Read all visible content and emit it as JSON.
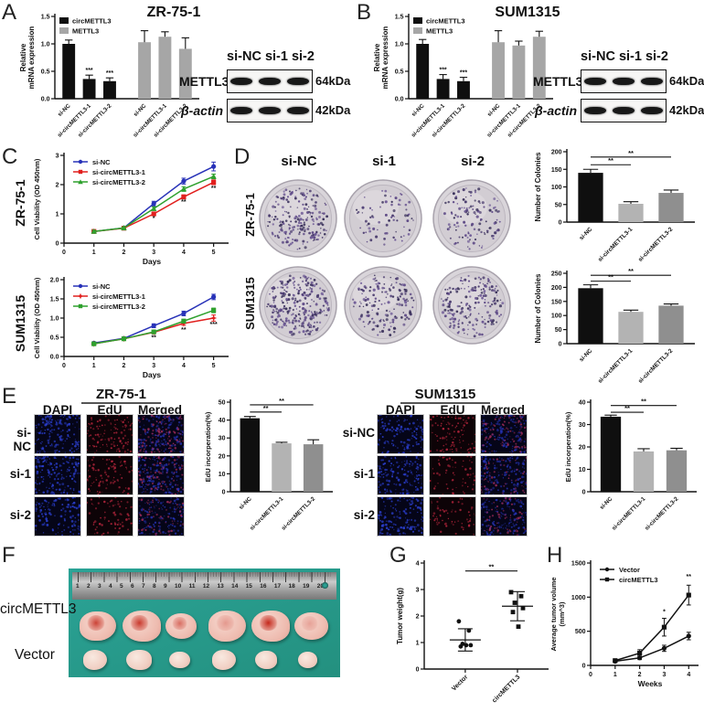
{
  "panels": {
    "A": {
      "label": "A",
      "title": "ZR-75-1",
      "blot": {
        "lanes": "si-NC si-1 si-2",
        "rows": [
          {
            "protein": "METTL3",
            "size": "64kDa"
          },
          {
            "protein": "β-actin",
            "size": "42kDa"
          }
        ]
      }
    },
    "B": {
      "label": "B",
      "title": "SUM1315",
      "blot": {
        "lanes": "si-NC si-1 si-2",
        "rows": [
          {
            "protein": "METTL3",
            "size": "64kDa"
          },
          {
            "protein": "β-actin",
            "size": "42kDa"
          }
        ]
      }
    },
    "C": {
      "label": "C",
      "row_labels": [
        "ZR-75-1",
        "SUM1315"
      ]
    },
    "D": {
      "label": "D",
      "col_headers": [
        "si-NC",
        "si-1",
        "si-2"
      ],
      "row_labels": [
        "ZR-75-1",
        "SUM1315"
      ]
    },
    "E": {
      "label": "E",
      "left": {
        "title": "ZR-75-1",
        "col_headers": [
          "DAPI",
          "EdU",
          "Merged"
        ],
        "row_labels": [
          "si-NC",
          "si-1",
          "si-2"
        ]
      },
      "right": {
        "title": "SUM1315",
        "col_headers": [
          "DAPI",
          "EdU",
          "Merged"
        ],
        "row_labels": [
          "si-NC",
          "si-1",
          "si-2"
        ]
      }
    },
    "F": {
      "label": "F",
      "row_labels": [
        "circMETTL3",
        "Vector"
      ],
      "ruler_numbers": [
        1,
        2,
        3,
        4,
        5,
        6,
        7,
        8,
        9,
        10,
        11,
        12,
        13,
        14,
        15,
        16,
        17,
        18,
        19,
        20
      ]
    },
    "G": {
      "label": "G"
    },
    "H": {
      "label": "H"
    }
  },
  "chart_data": [
    {
      "id": "A_mrna",
      "type": "bar",
      "title": "ZR-75-1",
      "ylabel": [
        "Relative",
        "mRNA expression"
      ],
      "ylim": [
        0,
        1.5
      ],
      "yticks": [
        0,
        0.5,
        1,
        1.5
      ],
      "ytick_labels": [
        "0.0",
        "0.5",
        "1.0",
        "1.5"
      ],
      "categories": [
        "si-NC",
        "si-circMETTL3-1",
        "si-circMETTL3-2",
        "si-NC",
        "si-circMETTL3-1",
        "si-circMETTL3-2"
      ],
      "values": [
        1.0,
        0.36,
        0.32,
        1.03,
        1.13,
        0.91
      ],
      "errors": [
        0.07,
        0.07,
        0.06,
        0.21,
        0.09,
        0.2
      ],
      "bar_colors": [
        "#0f0f0f",
        "#0f0f0f",
        "#0f0f0f",
        "#a6a6a6",
        "#a6a6a6",
        "#a6a6a6"
      ],
      "sig_labels": [
        "",
        "***",
        "***",
        "",
        "",
        ""
      ],
      "gap_after": 2,
      "legend": [
        {
          "label": "circMETTL3",
          "color": "#0f0f0f"
        },
        {
          "label": "METTL3",
          "color": "#a6a6a6"
        }
      ]
    },
    {
      "id": "B_mrna",
      "type": "bar",
      "title": "SUM1315",
      "ylabel": [
        "Relative",
        "mRNA expression"
      ],
      "ylim": [
        0,
        1.5
      ],
      "yticks": [
        0,
        0.5,
        1,
        1.5
      ],
      "ytick_labels": [
        "0.0",
        "0.5",
        "1.0",
        "1.5"
      ],
      "categories": [
        "si-NC",
        "si-circMETTL3-1",
        "si-circMETTL3-2",
        "si-NC",
        "si-circMETTL3-1",
        "si-circMETTL3-2"
      ],
      "values": [
        1.0,
        0.36,
        0.32,
        1.03,
        0.97,
        1.13
      ],
      "errors": [
        0.08,
        0.08,
        0.07,
        0.21,
        0.08,
        0.1
      ],
      "bar_colors": [
        "#0f0f0f",
        "#0f0f0f",
        "#0f0f0f",
        "#a6a6a6",
        "#a6a6a6",
        "#a6a6a6"
      ],
      "sig_labels": [
        "",
        "***",
        "***",
        "",
        "",
        ""
      ],
      "gap_after": 2,
      "legend": [
        {
          "label": "circMETTL3",
          "color": "#0f0f0f"
        },
        {
          "label": "METTL3",
          "color": "#a6a6a6"
        }
      ]
    },
    {
      "id": "C_zr",
      "type": "line",
      "cell_line": "ZR-75-1",
      "ylabel": "Cell Viability (OD 450nm)",
      "xlabel": "Days",
      "ylim": [
        0,
        3
      ],
      "yticks": [
        0,
        1,
        2,
        3
      ],
      "ytick_labels": [
        "0",
        "1",
        "2",
        "3"
      ],
      "xlim": [
        0,
        5.5
      ],
      "xticks": [
        0,
        1,
        2,
        3,
        4,
        5
      ],
      "x": [
        1,
        2,
        3,
        4,
        5
      ],
      "series": [
        {
          "name": "si-NC",
          "color": "#2832b8",
          "marker": "circle",
          "values": [
            0.4,
            0.52,
            1.35,
            2.12,
            2.62
          ],
          "errors": [
            0.04,
            0.04,
            0.08,
            0.1,
            0.15
          ]
        },
        {
          "name": "si-circMETTL3-1",
          "color": "#e1201e",
          "marker": "square",
          "values": [
            0.4,
            0.51,
            1.0,
            1.58,
            2.08
          ],
          "errors": [
            0.04,
            0.04,
            0.06,
            0.07,
            0.08
          ]
        },
        {
          "name": "si-circMETTL3-2",
          "color": "#2fa12e",
          "marker": "triangle",
          "values": [
            0.4,
            0.52,
            1.18,
            1.85,
            2.28
          ],
          "errors": [
            0.04,
            0.04,
            0.06,
            0.08,
            0.08
          ]
        }
      ],
      "annotations": [
        {
          "x": 3,
          "y": 0.78,
          "text": "*"
        },
        {
          "x": 4,
          "y": 1.34,
          "text": "**"
        },
        {
          "x": 5,
          "y": 1.82,
          "text": "**"
        }
      ]
    },
    {
      "id": "C_sum",
      "type": "line",
      "cell_line": "SUM1315",
      "ylabel": "Cell Viability (OD 450nm)",
      "xlabel": "Days",
      "ylim": [
        0,
        2
      ],
      "yticks": [
        0,
        0.5,
        1,
        1.5,
        2
      ],
      "ytick_labels": [
        "0.0",
        "0.5",
        "1.0",
        "1.5",
        "2.0"
      ],
      "xlim": [
        0,
        5.5
      ],
      "xticks": [
        0,
        1,
        2,
        3,
        4,
        5
      ],
      "x": [
        1,
        2,
        3,
        4,
        5
      ],
      "series": [
        {
          "name": "si-NC",
          "color": "#2832b8",
          "marker": "circle",
          "values": [
            0.35,
            0.47,
            0.8,
            1.12,
            1.55
          ],
          "errors": [
            0.03,
            0.03,
            0.05,
            0.06,
            0.07
          ]
        },
        {
          "name": "si-circMETTL3-1",
          "color": "#e1201e",
          "marker": "star",
          "values": [
            0.33,
            0.46,
            0.63,
            0.86,
            1.0
          ],
          "errors": [
            0.03,
            0.03,
            0.04,
            0.05,
            0.08
          ]
        },
        {
          "name": "si-circMETTL3-2",
          "color": "#2fa12e",
          "marker": "square",
          "values": [
            0.33,
            0.46,
            0.64,
            0.92,
            1.2
          ],
          "errors": [
            0.03,
            0.03,
            0.04,
            0.05,
            0.06
          ]
        }
      ],
      "annotations": [
        {
          "x": 3,
          "y": 0.44,
          "text": "**"
        },
        {
          "x": 4,
          "y": 0.64,
          "text": "**"
        },
        {
          "x": 5,
          "y": 0.78,
          "text": "***"
        }
      ]
    },
    {
      "id": "D_zr_col",
      "type": "bar",
      "cell_line": "ZR-75-1",
      "ylabel": "Number of Colonies",
      "ylim": [
        0,
        200
      ],
      "yticks": [
        0,
        50,
        100,
        150,
        200
      ],
      "ytick_labels": [
        "0",
        "50",
        "100",
        "150",
        "200"
      ],
      "categories": [
        "si-NC",
        "si-circMETTL3-1",
        "si-circMETTL3-2"
      ],
      "values": [
        140,
        52,
        83
      ],
      "errors": [
        10,
        6,
        8
      ],
      "bar_colors": [
        "#0f0f0f",
        "#b3b3b3",
        "#8f8f8f"
      ],
      "comparisons": [
        {
          "a": 0,
          "b": 1,
          "label": "**",
          "y": 163
        },
        {
          "a": 0,
          "b": 2,
          "label": "**",
          "y": 185
        }
      ]
    },
    {
      "id": "D_sum_col",
      "type": "bar",
      "cell_line": "SUM1315",
      "ylabel": "Number of Colonies",
      "ylim": [
        0,
        250
      ],
      "yticks": [
        0,
        50,
        100,
        150,
        200,
        250
      ],
      "ytick_labels": [
        "0",
        "50",
        "100",
        "150",
        "200",
        "250"
      ],
      "categories": [
        "si-NC",
        "si-circMETTL3-1",
        "si-circMETTL3-2"
      ],
      "values": [
        197,
        113,
        135
      ],
      "errors": [
        12,
        6,
        6
      ],
      "bar_colors": [
        "#0f0f0f",
        "#b3b3b3",
        "#8f8f8f"
      ],
      "comparisons": [
        {
          "a": 0,
          "b": 1,
          "label": "**",
          "y": 222
        },
        {
          "a": 0,
          "b": 2,
          "label": "**",
          "y": 243
        }
      ]
    },
    {
      "id": "E_zr_edu",
      "type": "bar",
      "cell_line": "ZR-75-1",
      "ylabel": "EdU incorperation(%)",
      "ylim": [
        0,
        50
      ],
      "yticks": [
        0,
        10,
        20,
        30,
        40,
        50
      ],
      "ytick_labels": [
        "0",
        "10",
        "20",
        "30",
        "40",
        "50"
      ],
      "categories": [
        "si-NC",
        "si-circMETTL3-1",
        "si-circMETTL3-2"
      ],
      "values": [
        41,
        27,
        26.5
      ],
      "errors": [
        1,
        0.6,
        2.5
      ],
      "bar_colors": [
        "#0f0f0f",
        "#b3b3b3",
        "#8f8f8f"
      ],
      "comparisons": [
        {
          "a": 0,
          "b": 1,
          "label": "**",
          "y": 44.5
        },
        {
          "a": 0,
          "b": 2,
          "label": "**",
          "y": 48.5
        }
      ]
    },
    {
      "id": "E_sum_edu",
      "type": "bar",
      "cell_line": "SUM1315",
      "ylabel": "EdU incorperation(%)",
      "ylim": [
        0,
        40
      ],
      "yticks": [
        0,
        10,
        20,
        30,
        40
      ],
      "ytick_labels": [
        "0",
        "10",
        "20",
        "30",
        "40"
      ],
      "categories": [
        "si-NC",
        "si-circMETTL3-1",
        "si-circMETTL3-2"
      ],
      "values": [
        33.5,
        18,
        18.5
      ],
      "errors": [
        0.7,
        1.2,
        0.9
      ],
      "bar_colors": [
        "#0f0f0f",
        "#b3b3b3",
        "#8f8f8f"
      ],
      "comparisons": [
        {
          "a": 0,
          "b": 1,
          "label": "**",
          "y": 35.5
        },
        {
          "a": 0,
          "b": 2,
          "label": "**",
          "y": 38.5
        }
      ]
    },
    {
      "id": "G_weight",
      "type": "scatter",
      "ylabel": "Tumor weight(g)",
      "ylim": [
        0,
        4
      ],
      "yticks": [
        0,
        1,
        2,
        3,
        4
      ],
      "ytick_labels": [
        "0",
        "1",
        "2",
        "3",
        "4"
      ],
      "groups": [
        {
          "name": "Vector",
          "marker": "circle",
          "points": [
            1.8,
            1.45,
            0.95,
            0.9,
            0.85,
            0.9
          ],
          "mean": 1.1,
          "err": 0.42
        },
        {
          "name": "circMETTL3",
          "marker": "square",
          "points": [
            2.9,
            2.75,
            2.5,
            2.3,
            2.15,
            1.6
          ],
          "mean": 2.37,
          "err": 0.55
        }
      ],
      "comparisons": [
        {
          "a": 0,
          "b": 1,
          "label": "**",
          "y": 3.7
        }
      ]
    },
    {
      "id": "H_volume",
      "type": "line",
      "ylabel": [
        "Average tumor volume",
        "(mm^3)"
      ],
      "xlabel": "Weeks",
      "ylim": [
        0,
        1500
      ],
      "yticks": [
        0,
        500,
        1000,
        1500
      ],
      "ytick_labels": [
        "0",
        "500",
        "1000",
        "1500"
      ],
      "xlim": [
        0,
        4.4
      ],
      "xticks": [
        0,
        1,
        2,
        3,
        4
      ],
      "x": [
        1,
        2,
        3,
        4
      ],
      "series": [
        {
          "name": "Vector",
          "color": "#111111",
          "marker": "circle",
          "values": [
            60,
            110,
            250,
            430
          ],
          "errors": [
            15,
            25,
            45,
            55
          ]
        },
        {
          "name": "circMETTL3",
          "color": "#111111",
          "marker": "square",
          "values": [
            70,
            180,
            560,
            1030
          ],
          "errors": [
            20,
            50,
            130,
            145
          ]
        }
      ],
      "annotations": [
        {
          "x": 3,
          "y": 760,
          "text": "*"
        },
        {
          "x": 4,
          "y": 1270,
          "text": "**"
        }
      ]
    }
  ],
  "images": {
    "colony_dishes": [
      {
        "cell_line": "ZR-75-1",
        "group": "si-NC",
        "colonies": 140
      },
      {
        "cell_line": "ZR-75-1",
        "group": "si-1",
        "colonies": 52
      },
      {
        "cell_line": "ZR-75-1",
        "group": "si-2",
        "colonies": 83
      },
      {
        "cell_line": "SUM1315",
        "group": "si-NC",
        "colonies": 197
      },
      {
        "cell_line": "SUM1315",
        "group": "si-1",
        "colonies": 113
      },
      {
        "cell_line": "SUM1315",
        "group": "si-2",
        "colonies": 135
      }
    ],
    "edu_panels": [
      {
        "cell_line": "ZR-75-1",
        "rows": [
          {
            "name": "si-NC",
            "dapi": 150,
            "edu": 115
          },
          {
            "name": "si-1",
            "dapi": 160,
            "edu": 90
          },
          {
            "name": "si-2",
            "dapi": 120,
            "edu": 70
          }
        ]
      },
      {
        "cell_line": "SUM1315",
        "rows": [
          {
            "name": "si-NC",
            "dapi": 130,
            "edu": 100
          },
          {
            "name": "si-1",
            "dapi": 150,
            "edu": 60
          },
          {
            "name": "si-2",
            "dapi": 140,
            "edu": 65
          }
        ]
      }
    ],
    "tumors": {
      "circMETTL3": {
        "sizes": [
          40,
          42,
          34,
          41,
          42,
          37
        ],
        "red": [
          0.85,
          0.9,
          0.6,
          0.35,
          1.0,
          0.3
        ]
      },
      "Vector": {
        "sizes": [
          26,
          28,
          23,
          26,
          24,
          21
        ],
        "red": [
          0.15,
          0.05,
          0.1,
          0.05,
          0.1,
          0.05
        ]
      }
    }
  }
}
